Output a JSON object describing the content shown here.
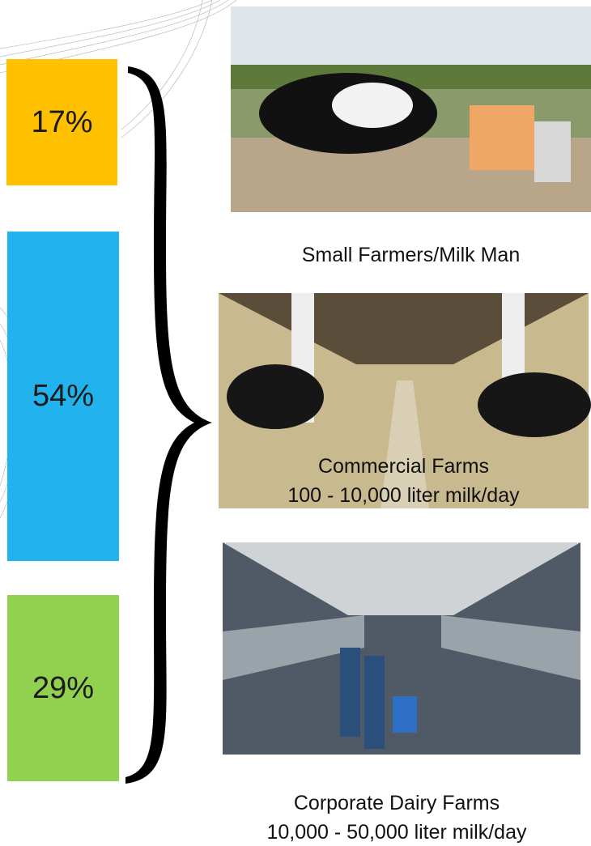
{
  "segments": [
    {
      "label": "17%",
      "color": "#ffc000"
    },
    {
      "label": "54%",
      "color": "#22b3ee"
    },
    {
      "label": "29%",
      "color": "#92d050"
    }
  ],
  "farms": [
    {
      "lines": [
        "Small Farmers/Milk Man"
      ]
    },
    {
      "lines": [
        "Commercial Farms",
        "100 - 10,000 liter milk/day"
      ]
    },
    {
      "lines": [
        "Corporate Dairy Farms",
        "10,000 - 50,000 liter milk/day"
      ]
    }
  ]
}
